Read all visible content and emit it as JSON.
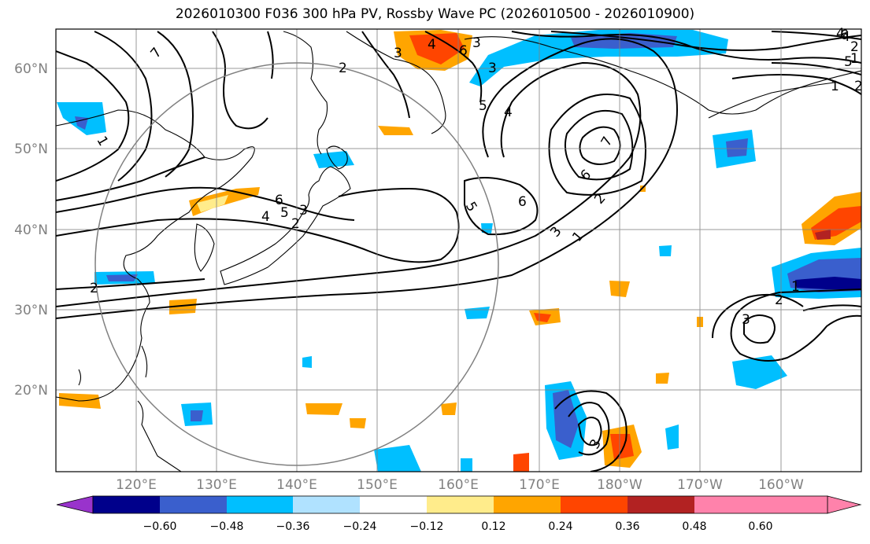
{
  "title": "2026010300 F036 300 hPa PV, Rossby Wave PC (2026010500 - 2026010900)",
  "lat_labels": [
    "60°N",
    "50°N",
    "40°N",
    "30°N",
    "20°N"
  ],
  "lon_labels": [
    "120°E",
    "130°E",
    "140°E",
    "150°E",
    "160°E",
    "170°E",
    "180°W",
    "170°W",
    "160°W"
  ],
  "map_extent": {
    "lon_min": 110,
    "lon_max": 210,
    "lat_min": 10,
    "lat_max": 65
  },
  "colorbar": {
    "ticks": [
      "−0.60",
      "−0.48",
      "−0.36",
      "−0.24",
      "−0.12",
      "0.12",
      "0.24",
      "0.36",
      "0.48",
      "0.60"
    ],
    "colors": [
      "#9933cc",
      "#00008b",
      "#3a5fcd",
      "#00bfff",
      "#b0e2ff",
      "#ffffff",
      "#ffec8b",
      "#ffa500",
      "#ff4500",
      "#b22222",
      "#ff82ab"
    ]
  },
  "contour_labels": [
    "1",
    "2",
    "3",
    "4",
    "5",
    "6",
    "7",
    "4",
    "5",
    "6",
    "1",
    "2",
    "3",
    "4",
    "5",
    "6",
    "1",
    "2",
    "3",
    "6",
    "7",
    "6",
    "5",
    "4",
    "3",
    "2",
    "1",
    "2",
    "3",
    "1",
    "2",
    "3",
    "2",
    "4",
    "3"
  ]
}
